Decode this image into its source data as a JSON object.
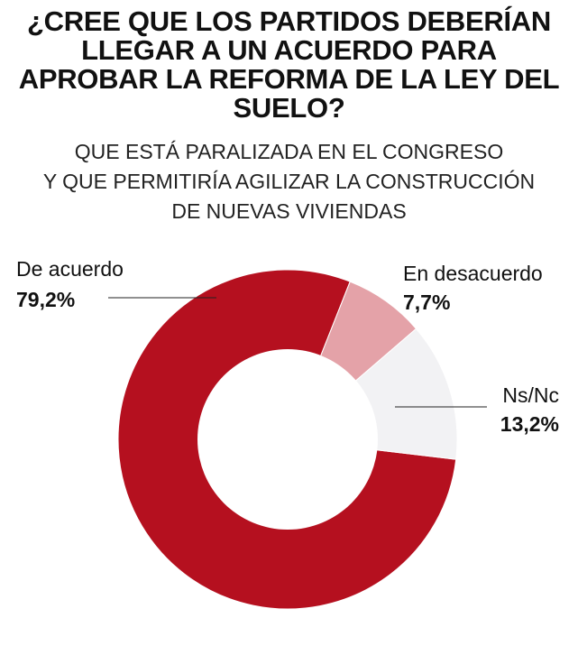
{
  "title_lines": [
    "¿CREE QUE LOS PARTIDOS DEBERÍAN",
    "LLEGAR A UN ACUERDO PARA",
    "APROBAR LA REFORMA DE LA LEY DEL",
    "SUELO?"
  ],
  "subtitle_lines": [
    "QUE ESTÁ PARALIZADA EN EL CONGRESO",
    "Y QUE PERMITIRÍA AGILIZAR LA CONSTRUCCIÓN",
    "DE NUEVAS VIVIENDAS"
  ],
  "chart_data": {
    "type": "pie",
    "donut": true,
    "slices": [
      {
        "label": "De acuerdo",
        "value": 79.2,
        "value_label": "79,2%",
        "color": "#b5101f"
      },
      {
        "label": "En desacuerdo",
        "value": 7.7,
        "value_label": "7,7%",
        "color": "#e4a2a8"
      },
      {
        "label": "Ns/Nc",
        "value": 13.2,
        "value_label": "13,2%",
        "color": "#f2f2f4"
      }
    ]
  }
}
